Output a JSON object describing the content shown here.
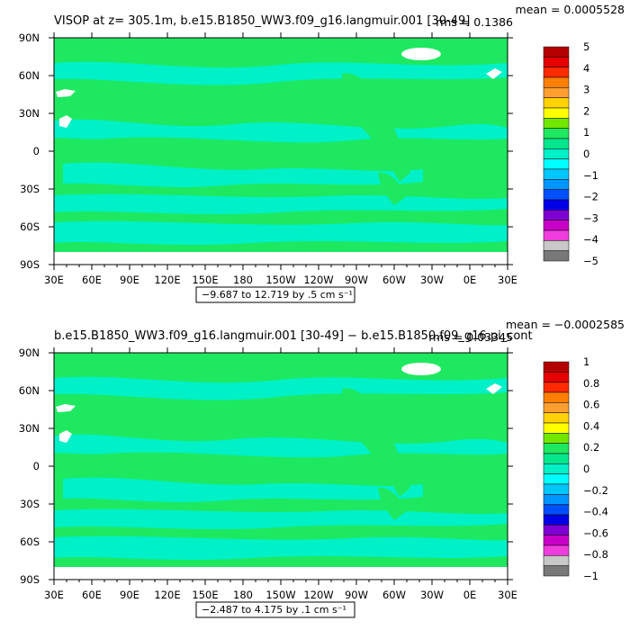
{
  "chart_data": [
    {
      "type": "heatmap",
      "title": "VISOP at z= 305.1m, b.e15.B1850_WW3.f09_g16.langmuir.001 [30-49]",
      "stat_mean": "mean = 0.0005528",
      "stat_rms": "rms = 0.1386",
      "range_label": "−9.687 to 12.719 by .5 cm s⁻¹",
      "x_ticks": [
        "30E",
        "60E",
        "90E",
        "120E",
        "150E",
        "180",
        "150W",
        "120W",
        "90W",
        "60W",
        "30W",
        "0E",
        "30E"
      ],
      "y_ticks": [
        "90N",
        "60N",
        "30N",
        "0",
        "30S",
        "60S",
        "90S"
      ],
      "colorbar_labels": [
        "5",
        "4",
        "3",
        "2",
        "1",
        "0",
        "−1",
        "−2",
        "−3",
        "−4",
        "−5"
      ],
      "colorbar_colors": [
        "#b40000",
        "#e60000",
        "#ff2a00",
        "#ff7f00",
        "#ff9f30",
        "#ffd200",
        "#ffff00",
        "#73e600",
        "#1ee860",
        "#00e68c",
        "#00f0c8",
        "#00ffff",
        "#00c8ff",
        "#0096ff",
        "#0050ff",
        "#0000e6",
        "#7f00d2",
        "#c800c8",
        "#f03cdc",
        "#c8c8c8",
        "#787878"
      ],
      "zero_band_color": "#1ee860",
      "near_zero_color": "#00f0c8"
    },
    {
      "type": "heatmap",
      "title": "b.e15.B1850_WW3.f09_g16.langmuir.001 [30-49] − b.e15.B1850.f09_g16.pi_cont",
      "stat_mean": "mean = −0.0002585",
      "stat_rms": "rms = 0.03345",
      "range_label": "−2.487 to 4.175 by .1 cm s⁻¹",
      "x_ticks": [
        "30E",
        "60E",
        "90E",
        "120E",
        "150E",
        "180",
        "150W",
        "120W",
        "90W",
        "60W",
        "30W",
        "0E",
        "30E"
      ],
      "y_ticks": [
        "90N",
        "60N",
        "30N",
        "0",
        "30S",
        "60S",
        "90S"
      ],
      "colorbar_labels": [
        "1",
        "0.8",
        "0.6",
        "0.4",
        "0.2",
        "0",
        "−0.2",
        "−0.4",
        "−0.6",
        "−0.8",
        "−1"
      ],
      "colorbar_colors": [
        "#b40000",
        "#e60000",
        "#ff2a00",
        "#ff7f00",
        "#ff9f30",
        "#ffd200",
        "#ffff00",
        "#73e600",
        "#1ee860",
        "#00e68c",
        "#00f0c8",
        "#00ffff",
        "#00c8ff",
        "#0096ff",
        "#0050ff",
        "#0000e6",
        "#7f00d2",
        "#c800c8",
        "#f03cdc",
        "#c8c8c8",
        "#787878"
      ],
      "zero_band_color": "#1ee860",
      "near_zero_color": "#00f0c8"
    }
  ]
}
